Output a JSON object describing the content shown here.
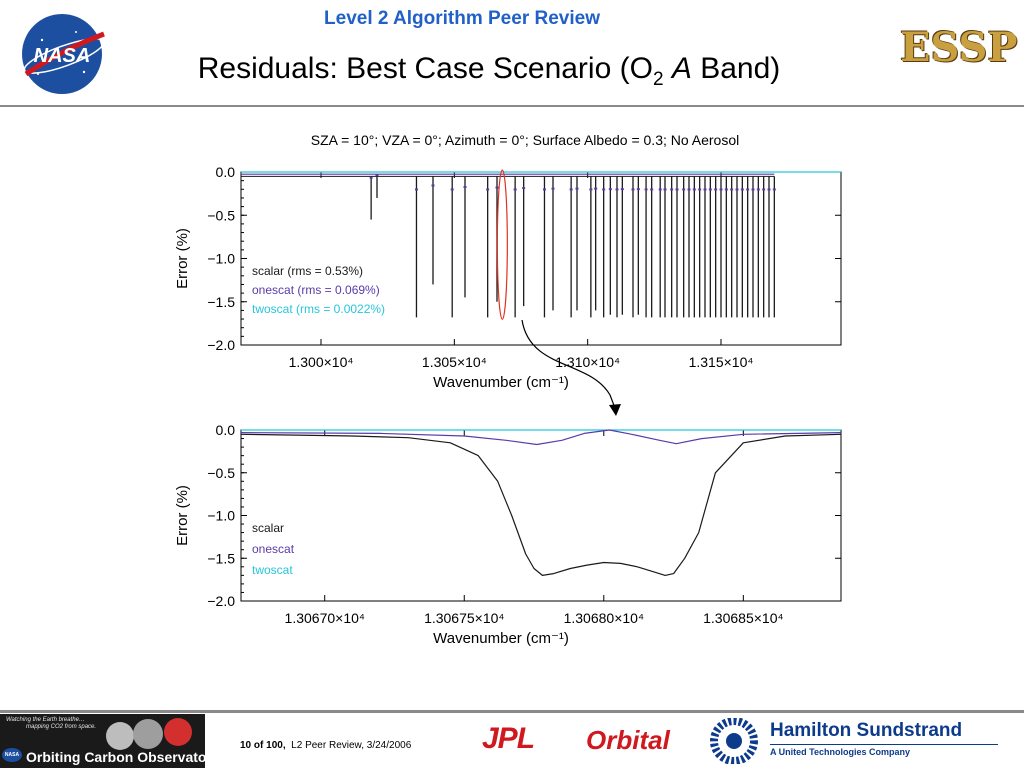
{
  "header": {
    "title": "Level 2 Algorithm Peer Review",
    "slide_title_main": "Residuals: Best Case Scenario (O",
    "slide_title_sub": "2",
    "slide_title_italic": "A",
    "slide_title_end": " Band)",
    "subtitle": "SZA = 10°; VZA = 0°; Azimuth = 0°; Surface Albedo = 0.3; No Aerosol"
  },
  "logos": {
    "nasa": "NASA",
    "essp": "ESSP"
  },
  "footer": {
    "page_num": "10",
    "of_label": "of",
    "page_total": "100,",
    "caption": "L2 Peer Review, 3/24/2006",
    "oco_tagline1": "Watching the Earth breathe…",
    "oco_tagline2": "mapping CO2 from space.",
    "oco_name": "Orbiting Carbon Observatory",
    "oco_nasa": "NASA",
    "jpl": "JPL",
    "orbital": "Orbital",
    "hs_name": "Hamilton Sundstrand",
    "hs_sub": "A United Technologies Company"
  },
  "colors": {
    "scalar": "#1a1a1a",
    "onescat": "#5b3aa8",
    "twoscat": "#26c6da",
    "highlight": "#e03020",
    "header_blue": "#2060c8"
  },
  "chart_data": [
    {
      "type": "line",
      "title": "",
      "xlabel": "Wavenumber (cm⁻¹)",
      "ylabel": "Error (%)",
      "xlim": [
        12970,
        13195
      ],
      "ylim": [
        -2.0,
        0.0
      ],
      "x_ticks": [
        13000,
        13050,
        13100,
        13150
      ],
      "x_tick_labels": [
        "1.300×10⁴",
        "1.305×10⁴",
        "1.310×10⁴",
        "1.315×10⁴"
      ],
      "y_ticks": [
        0.0,
        -0.5,
        -1.0,
        -1.5,
        -2.0
      ],
      "y_tick_labels": [
        "0.0",
        "−0.5",
        "−1.0",
        "−1.5",
        "−2.0"
      ],
      "legend": [
        "scalar (rms = 0.53%)",
        "onescat (rms = 0.069%)",
        "twoscat (rms = 0.0022%)"
      ],
      "legend_position": "left",
      "series": [
        {
          "name": "scalar",
          "baseline": -0.05,
          "lines_x": [
            13018.8,
            13021,
            13035.8,
            13042,
            13049.2,
            13054,
            13062.5,
            13066,
            13072.8,
            13076,
            13083.8,
            13087,
            13093.8,
            13096,
            13101.2,
            13103,
            13106,
            13108.5,
            13111,
            13113,
            13117,
            13119,
            13121.9,
            13124,
            13127.2,
            13129,
            13131.5,
            13133.5,
            13136,
            13138,
            13140,
            13142,
            13144,
            13146,
            13148,
            13150,
            13152,
            13154,
            13156,
            13158,
            13160,
            13162,
            13164,
            13166,
            13168,
            13170
          ],
          "lines_depth": [
            -0.55,
            -0.3,
            -1.68,
            -1.3,
            -1.68,
            -1.45,
            -1.68,
            -1.5,
            -1.68,
            -1.55,
            -1.68,
            -1.6,
            -1.68,
            -1.6,
            -1.68,
            -1.6,
            -1.68,
            -1.65,
            -1.68,
            -1.65,
            -1.68,
            -1.65,
            -1.68,
            -1.68,
            -1.68,
            -1.68,
            -1.68,
            -1.68,
            -1.68,
            -1.68,
            -1.68,
            -1.68,
            -1.68,
            -1.68,
            -1.68,
            -1.68,
            -1.68,
            -1.68,
            -1.68,
            -1.68,
            -1.68,
            -1.68,
            -1.68,
            -1.68,
            -1.68,
            -1.68
          ]
        },
        {
          "name": "onescat",
          "depth_scale": 0.12
        },
        {
          "name": "twoscat",
          "value": 0.0
        }
      ],
      "highlight_x": 13068
    },
    {
      "type": "line",
      "title": "",
      "xlabel": "Wavenumber (cm⁻¹)",
      "ylabel": "Error (%)",
      "xlim": [
        13066.7,
        13068.85
      ],
      "ylim": [
        -2.0,
        0.0
      ],
      "x_ticks": [
        13067.0,
        13067.5,
        13068.0,
        13068.5
      ],
      "x_tick_labels": [
        "1.30670×10⁴",
        "1.30675×10⁴",
        "1.30680×10⁴",
        "1.30685×10⁴"
      ],
      "y_ticks": [
        0.0,
        -0.5,
        -1.0,
        -1.5,
        -2.0
      ],
      "y_tick_labels": [
        "0.0",
        "−0.5",
        "−1.0",
        "−1.5",
        "−2.0"
      ],
      "legend": [
        "scalar",
        "onescat",
        "twoscat"
      ],
      "legend_position": "left",
      "series": [
        {
          "name": "scalar",
          "x": [
            13066.7,
            13066.9,
            13067.1,
            13067.3,
            13067.45,
            13067.55,
            13067.62,
            13067.67,
            13067.72,
            13067.75,
            13067.78,
            13067.82,
            13067.88,
            13067.94,
            13068.0,
            13068.06,
            13068.12,
            13068.18,
            13068.22,
            13068.25,
            13068.29,
            13068.34,
            13068.4,
            13068.5,
            13068.65,
            13068.85
          ],
          "y": [
            -0.05,
            -0.06,
            -0.07,
            -0.09,
            -0.15,
            -0.3,
            -0.6,
            -1.0,
            -1.45,
            -1.62,
            -1.7,
            -1.68,
            -1.62,
            -1.58,
            -1.55,
            -1.56,
            -1.6,
            -1.66,
            -1.7,
            -1.68,
            -1.5,
            -1.2,
            -0.5,
            -0.15,
            -0.07,
            -0.05
          ]
        },
        {
          "name": "onescat",
          "x": [
            13066.7,
            13067.2,
            13067.5,
            13067.65,
            13067.76,
            13067.85,
            13067.93,
            13068.02,
            13068.1,
            13068.2,
            13068.26,
            13068.35,
            13068.5,
            13068.85
          ],
          "y": [
            -0.03,
            -0.04,
            -0.07,
            -0.12,
            -0.17,
            -0.12,
            -0.04,
            0.0,
            -0.05,
            -0.12,
            -0.16,
            -0.1,
            -0.05,
            -0.03
          ]
        },
        {
          "name": "twoscat",
          "x": [
            13066.7,
            13068.85
          ],
          "y": [
            0.0,
            0.0
          ]
        }
      ]
    }
  ]
}
